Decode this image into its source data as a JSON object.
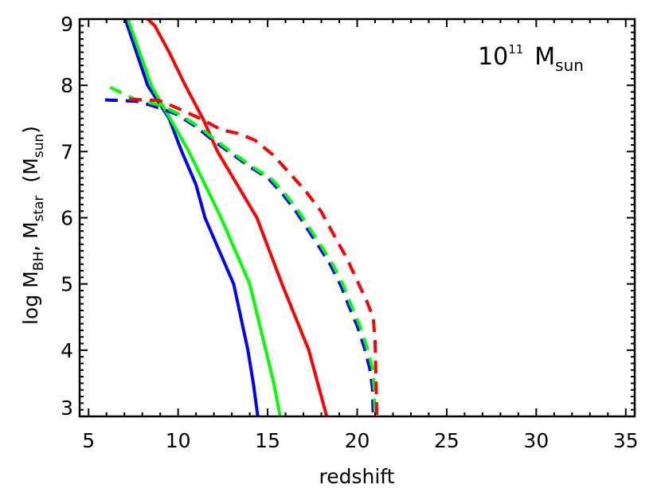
{
  "chart_data": {
    "type": "line",
    "xlabel": "redshift",
    "ylabel_parts": {
      "log": "log M",
      "bh": "BH",
      "comma": ", M",
      "star": "star",
      "paren_open": "  (M",
      "sun": "sun",
      "paren_close": ")"
    },
    "annotation": {
      "base": "10",
      "exp": "11",
      "m": "M",
      "sub": "sun"
    },
    "xlim": [
      4.5,
      35.5
    ],
    "ylim": [
      3,
      9
    ],
    "xticks": [
      5,
      10,
      15,
      20,
      25,
      30,
      35
    ],
    "yticks": [
      3,
      4,
      5,
      6,
      7,
      8,
      9
    ],
    "xtick_labels": [
      "5",
      "10",
      "15",
      "20",
      "25",
      "30",
      "35"
    ],
    "ytick_labels": [
      "3",
      "4",
      "5",
      "6",
      "7",
      "8",
      "9"
    ],
    "grid": false,
    "series": [
      {
        "color": "#0000ff",
        "style": "solid",
        "points": [
          [
            7.05,
            9.0
          ],
          [
            8.3,
            8.0
          ],
          [
            9.5,
            7.5
          ],
          [
            10.2,
            7.0
          ],
          [
            11.0,
            6.5
          ],
          [
            11.5,
            6.0
          ],
          [
            13.1,
            5.0
          ],
          [
            13.9,
            4.0
          ],
          [
            14.2,
            3.5
          ],
          [
            14.45,
            3.0
          ]
        ]
      },
      {
        "color": "#00ff00",
        "style": "solid",
        "points": [
          [
            7.2,
            9.0
          ],
          [
            8.5,
            8.0
          ],
          [
            10.6,
            7.0
          ],
          [
            12.4,
            6.0
          ],
          [
            14.0,
            5.0
          ],
          [
            14.9,
            4.0
          ],
          [
            15.35,
            3.5
          ],
          [
            15.7,
            3.0
          ]
        ]
      },
      {
        "color": "#ff0000",
        "style": "solid",
        "points": [
          [
            8.3,
            9.0
          ],
          [
            8.7,
            8.9
          ],
          [
            9.5,
            8.5
          ],
          [
            10.4,
            8.0
          ],
          [
            11.4,
            7.49
          ],
          [
            12.2,
            7.0
          ],
          [
            14.4,
            6.0
          ],
          [
            15.8,
            5.0
          ],
          [
            17.3,
            4.0
          ],
          [
            17.8,
            3.5
          ],
          [
            18.3,
            3.0
          ]
        ]
      },
      {
        "color": "#0000ff",
        "style": "dashed",
        "points": [
          [
            5.92,
            7.78
          ],
          [
            7.63,
            7.76
          ],
          [
            8.37,
            7.71
          ],
          [
            9.86,
            7.57
          ],
          [
            11.04,
            7.37
          ],
          [
            11.94,
            7.17
          ],
          [
            12.97,
            6.97
          ],
          [
            14.01,
            6.77
          ],
          [
            15.05,
            6.59
          ],
          [
            15.8,
            6.37
          ],
          [
            16.5,
            6.13
          ],
          [
            17.2,
            5.84
          ],
          [
            17.9,
            5.55
          ],
          [
            18.5,
            5.29
          ],
          [
            19.1,
            4.97
          ],
          [
            19.5,
            4.69
          ],
          [
            20.0,
            4.37
          ],
          [
            20.4,
            4.04
          ],
          [
            20.7,
            3.73
          ],
          [
            20.85,
            3.44
          ],
          [
            20.9,
            3.0
          ]
        ]
      },
      {
        "color": "#00ff00",
        "style": "dashed",
        "points": [
          [
            6.2,
            7.97
          ],
          [
            7.5,
            7.8
          ],
          [
            9.1,
            7.69
          ],
          [
            10.0,
            7.57
          ],
          [
            11.2,
            7.37
          ],
          [
            12.1,
            7.17
          ],
          [
            13.1,
            6.97
          ],
          [
            14.15,
            6.77
          ],
          [
            15.2,
            6.59
          ],
          [
            15.95,
            6.37
          ],
          [
            16.65,
            6.13
          ],
          [
            17.35,
            5.84
          ],
          [
            18.05,
            5.55
          ],
          [
            18.65,
            5.29
          ],
          [
            19.25,
            4.97
          ],
          [
            19.65,
            4.69
          ],
          [
            20.15,
            4.37
          ],
          [
            20.55,
            4.04
          ],
          [
            20.85,
            3.73
          ],
          [
            20.95,
            3.44
          ],
          [
            21.0,
            3.0
          ]
        ]
      },
      {
        "color": "#ff0000",
        "style": "dashed",
        "points": [
          [
            7.26,
            7.79
          ],
          [
            8.96,
            7.77
          ],
          [
            10.0,
            7.65
          ],
          [
            11.3,
            7.49
          ],
          [
            12.4,
            7.33
          ],
          [
            13.4,
            7.27
          ],
          [
            14.3,
            7.17
          ],
          [
            15.3,
            6.95
          ],
          [
            16.2,
            6.68
          ],
          [
            17.1,
            6.41
          ],
          [
            18.0,
            6.09
          ],
          [
            18.8,
            5.69
          ],
          [
            19.4,
            5.4
          ],
          [
            20.0,
            5.05
          ],
          [
            20.55,
            4.73
          ],
          [
            20.9,
            4.49
          ],
          [
            21.0,
            4.13
          ],
          [
            21.1,
            3.0
          ]
        ]
      }
    ]
  }
}
